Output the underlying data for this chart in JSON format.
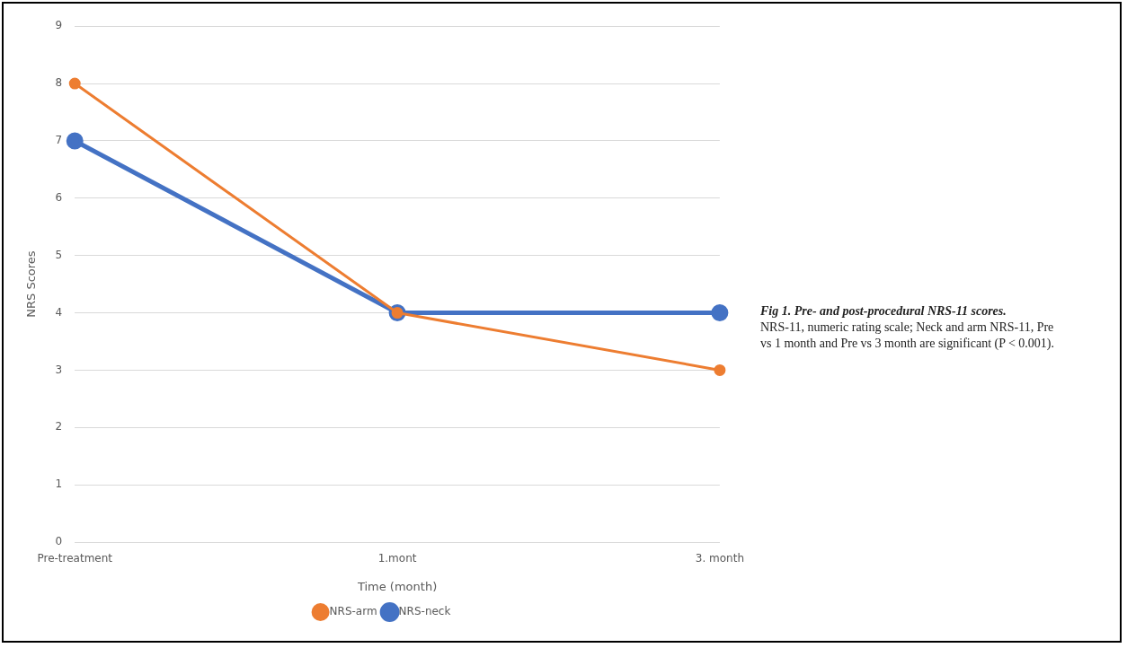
{
  "chart_data": {
    "type": "line",
    "title": "Fig 1. Pre- and post-procedural NRS-11 scores.",
    "annotations": [
      "NRS-11, numeric rating scale; Neck and arm NRS-11, Pre vs 1 month and Pre vs 3 month are significant (P < 0.001)."
    ],
    "xlabel": "Time (month)",
    "ylabel": "NRS Scores",
    "categories": [
      "Pre-treatment",
      "1.mont",
      "3. month"
    ],
    "series": [
      {
        "name": "NRS-neck",
        "color": "#4472c4",
        "values": [
          7,
          4,
          4
        ]
      },
      {
        "name": "NRS-arm",
        "color": "#ed7d31",
        "values": [
          8,
          4,
          3
        ]
      }
    ],
    "ylim": [
      0,
      9
    ],
    "yticks": [
      0,
      1,
      2,
      3,
      4,
      5,
      6,
      7,
      8,
      9
    ],
    "grid": "y",
    "legend": "bottom",
    "marker": "circle",
    "line_style": "solid"
  }
}
